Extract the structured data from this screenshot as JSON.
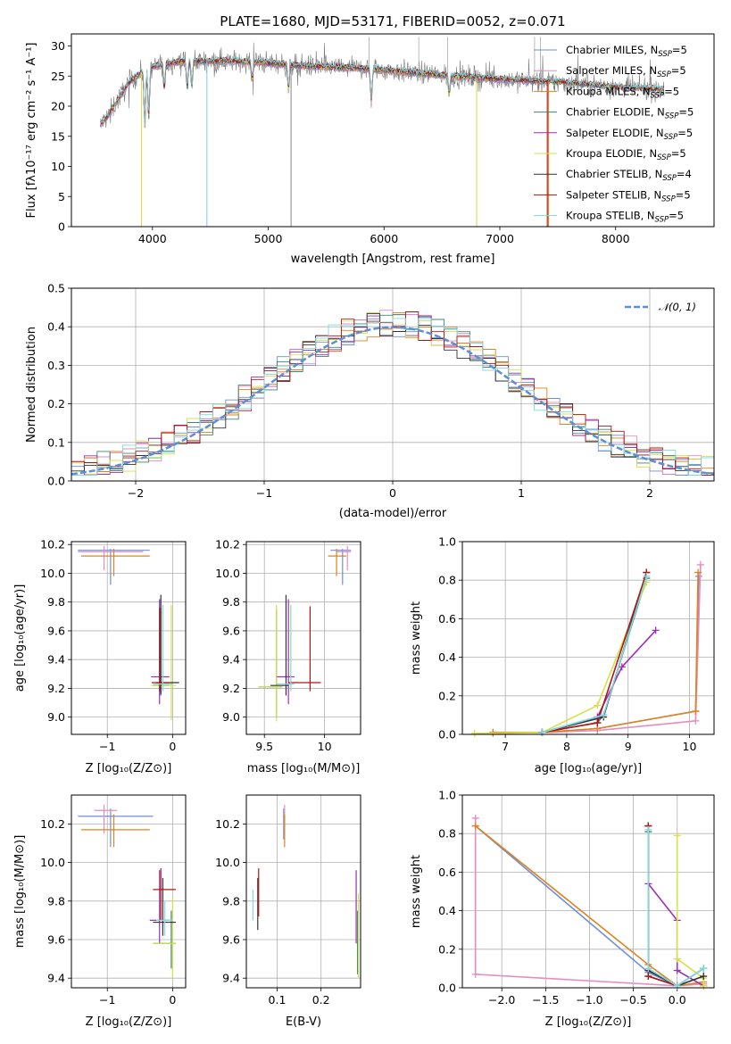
{
  "colors": {
    "chabrier_miles": "#6f8fd8",
    "salpeter_miles": "#e88bc0",
    "kroupa_miles": "#e0821e",
    "chabrier_elodie": "#3a8a7a",
    "salpeter_elodie": "#9b30b5",
    "kroupa_elodie": "#d6e04a",
    "chabrier_stelib": "#333333",
    "salpeter_stelib": "#b01515",
    "kroupa_stelib": "#7fd8e0",
    "data_gray": "#7a7a7a",
    "gauss": "#5b8fd8"
  },
  "chart_data": [
    {
      "type": "line",
      "title": "PLATE=1680, MJD=53171, FIBERID=0052, z=0.071",
      "xlabel": "wavelength [Angstrom, rest frame]",
      "ylabel": "Flux [fλ10⁻¹⁷ erg cm⁻² s⁻¹ A⁻¹]",
      "xlim": [
        3300,
        8850
      ],
      "ylim": [
        0,
        32
      ],
      "xticks": [
        4000,
        5000,
        6000,
        7000,
        8000
      ],
      "yticks": [
        0,
        5,
        10,
        15,
        20,
        25,
        30
      ],
      "grid": false,
      "legend": "top-right",
      "continuum_x": [
        3550,
        3600,
        3700,
        3800,
        3900,
        4000,
        4100,
        4200,
        4400,
        4600,
        4800,
        5000,
        5200,
        5500,
        5800,
        6000,
        6300,
        6600,
        6900,
        7200,
        7500,
        7800,
        8100,
        8400
      ],
      "continuum_y": [
        17,
        18,
        21,
        24,
        25.5,
        26.5,
        27,
        27.3,
        27.5,
        27.5,
        27.4,
        27.2,
        26.8,
        26.5,
        26.3,
        26,
        25.5,
        25,
        24.6,
        24.3,
        24,
        23.5,
        23,
        22.8
      ],
      "series": [
        {
          "name": "Chabrier MILES, N$_{SSP}$=5",
          "label_main": "Chabrier MILES, N",
          "label_sub": "SSP",
          "label_end": "=5",
          "color_key": "chabrier_miles"
        },
        {
          "name": "Salpeter MILES, N$_{SSP}$=5",
          "label_main": "Salpeter MILES, N",
          "label_sub": "SSP",
          "label_end": "=5",
          "color_key": "salpeter_miles"
        },
        {
          "name": "Kroupa MILES, N$_{SSP}$=5",
          "label_main": "Kroupa MILES, N",
          "label_sub": "SSP",
          "label_end": "=5",
          "color_key": "kroupa_miles"
        },
        {
          "name": "Chabrier ELODIE, N$_{SSP}$=5",
          "label_main": "Chabrier ELODIE, N",
          "label_sub": "SSP",
          "label_end": "=5",
          "color_key": "chabrier_elodie"
        },
        {
          "name": "Salpeter ELODIE, N$_{SSP}$=5",
          "label_main": "Salpeter ELODIE, N",
          "label_sub": "SSP",
          "label_end": "=5",
          "color_key": "salpeter_elodie"
        },
        {
          "name": "Kroupa ELODIE, N$_{SSP}$=5",
          "label_main": "Kroupa ELODIE, N",
          "label_sub": "SSP",
          "label_end": "=5",
          "color_key": "kroupa_elodie"
        },
        {
          "name": "Chabrier STELIB, N$_{SSP}$=4",
          "label_main": "Chabrier STELIB, N",
          "label_sub": "SSP",
          "label_end": "=4",
          "color_key": "chabrier_stelib"
        },
        {
          "name": "Salpeter STELIB, N$_{SSP}$=5",
          "label_main": "Salpeter STELIB, N",
          "label_sub": "SSP",
          "label_end": "=5",
          "color_key": "salpeter_stelib"
        },
        {
          "name": "Kroupa STELIB, N$_{SSP}$=5",
          "label_main": "Kroupa STELIB, N",
          "label_sub": "SSP",
          "label_end": "=5",
          "color_key": "kroupa_stelib"
        }
      ]
    },
    {
      "type": "line",
      "xlabel": "(data-model)/error",
      "ylabel": "Normed distribution",
      "xlim": [
        -2.5,
        2.5
      ],
      "ylim": [
        0,
        0.5
      ],
      "xticks": [
        -2,
        -1,
        0,
        1,
        2
      ],
      "yticks": [
        0.0,
        0.1,
        0.2,
        0.3,
        0.4,
        0.5
      ],
      "grid": true,
      "legend": "top-right",
      "gauss_label": "𝒩(0, 1)",
      "bin_width": 0.1,
      "bin_start": -2.5
    },
    {
      "type": "scatter",
      "xlabel": "Z [log₁₀(Z/Z⊙)]",
      "ylabel": "age  [log₁₀(age/yr)]",
      "xlim": [
        -1.55,
        0.2
      ],
      "ylim": [
        8.88,
        10.22
      ],
      "xticks": [
        -1,
        0
      ],
      "yticks": [
        9.0,
        9.2,
        9.4,
        9.6,
        9.8,
        10.0,
        10.2
      ],
      "grid": true,
      "points": [
        {
          "c": "chabrier_miles",
          "x": -0.95,
          "xe": [
            -1.45,
            -0.35
          ],
          "y": 10.16,
          "ye": [
            9.92,
            10.17
          ]
        },
        {
          "c": "salpeter_miles",
          "x": -1.05,
          "xe": [
            -1.45,
            -0.45
          ],
          "y": 10.15,
          "ye": [
            10.02,
            10.19
          ]
        },
        {
          "c": "kroupa_miles",
          "x": -0.9,
          "xe": [
            -1.4,
            -0.35
          ],
          "y": 10.12,
          "ye": [
            9.98,
            10.17
          ]
        },
        {
          "c": "chabrier_elodie",
          "x": -0.18,
          "xe": [
            -0.3,
            -0.05
          ],
          "y": 9.22,
          "ye": [
            9.15,
            9.76
          ]
        },
        {
          "c": "salpeter_elodie",
          "x": -0.2,
          "xe": [
            -0.33,
            -0.05
          ],
          "y": 9.28,
          "ye": [
            9.09,
            9.82
          ]
        },
        {
          "c": "kroupa_elodie",
          "x": -0.02,
          "xe": [
            -0.33,
            0.05
          ],
          "y": 9.22,
          "ye": [
            8.98,
            9.78
          ]
        },
        {
          "c": "chabrier_stelib",
          "x": -0.18,
          "xe": [
            -0.25,
            0.1
          ],
          "y": 9.24,
          "ye": [
            9.16,
            9.85
          ]
        },
        {
          "c": "salpeter_stelib",
          "x": -0.2,
          "xe": [
            -0.32,
            -0.05
          ],
          "y": 9.24,
          "ye": [
            9.18,
            9.76
          ]
        },
        {
          "c": "kroupa_stelib",
          "x": -0.15,
          "xe": [
            -0.3,
            0.0
          ],
          "y": 9.23,
          "ye": [
            9.18,
            9.78
          ]
        }
      ]
    },
    {
      "type": "scatter",
      "xlabel": "mass [log₁₀(M/M⊙)]",
      "ylabel": "",
      "xlim": [
        9.35,
        10.3
      ],
      "ylim": [
        8.88,
        10.22
      ],
      "xticks": [
        9.5,
        10.0
      ],
      "yticks": [
        9.0,
        9.2,
        9.4,
        9.6,
        9.8,
        10.0,
        10.2
      ],
      "grid": true,
      "points": [
        {
          "c": "chabrier_miles",
          "x": 10.15,
          "xe": [
            10.05,
            10.22
          ],
          "y": 10.16,
          "ye": [
            9.92,
            10.17
          ]
        },
        {
          "c": "salpeter_miles",
          "x": 10.19,
          "xe": [
            10.1,
            10.22
          ],
          "y": 10.15,
          "ye": [
            10.02,
            10.19
          ]
        },
        {
          "c": "kroupa_miles",
          "x": 10.1,
          "xe": [
            10.03,
            10.18
          ],
          "y": 10.12,
          "ye": [
            9.98,
            10.17
          ]
        },
        {
          "c": "chabrier_elodie",
          "x": 9.6,
          "xe": [
            9.45,
            9.65
          ],
          "y": 9.21,
          "ye": [
            9.0,
            9.75
          ]
        },
        {
          "c": "salpeter_elodie",
          "x": 9.7,
          "xe": [
            9.6,
            9.75
          ],
          "y": 9.28,
          "ye": [
            9.09,
            9.82
          ]
        },
        {
          "c": "kroupa_elodie",
          "x": 9.6,
          "xe": [
            9.45,
            9.65
          ],
          "y": 9.21,
          "ye": [
            8.97,
            9.78
          ]
        },
        {
          "c": "chabrier_stelib",
          "x": 9.68,
          "xe": [
            9.55,
            9.7
          ],
          "y": 9.22,
          "ye": [
            9.15,
            9.85
          ]
        },
        {
          "c": "salpeter_stelib",
          "x": 9.88,
          "xe": [
            9.7,
            9.97
          ],
          "y": 9.24,
          "ye": [
            9.18,
            9.77
          ]
        },
        {
          "c": "kroupa_stelib",
          "x": 9.72,
          "xe": [
            9.6,
            9.75
          ],
          "y": 9.23,
          "ye": [
            9.18,
            9.78
          ]
        }
      ]
    },
    {
      "type": "line",
      "xlabel": "age  [log₁₀(age/yr)]",
      "ylabel": "mass weight",
      "xlim": [
        6.3,
        10.4
      ],
      "ylim": [
        0,
        1
      ],
      "xticks": [
        7,
        8,
        9,
        10
      ],
      "yticks": [
        0.0,
        0.2,
        0.4,
        0.6,
        0.8,
        1.0
      ],
      "grid": true,
      "lines": [
        {
          "c": "chabrier_miles",
          "x": [
            6.8,
            7.6,
            8.5,
            10.1,
            10.15
          ],
          "y": [
            0.01,
            0.01,
            0.03,
            0.12,
            0.82
          ]
        },
        {
          "c": "salpeter_miles",
          "x": [
            6.8,
            7.6,
            8.5,
            10.1,
            10.18
          ],
          "y": [
            0.005,
            0.01,
            0.02,
            0.07,
            0.88
          ]
        },
        {
          "c": "kroupa_miles",
          "x": [
            6.8,
            7.6,
            8.5,
            10.1,
            10.14
          ],
          "y": [
            0.01,
            0.01,
            0.03,
            0.12,
            0.84
          ]
        },
        {
          "c": "chabrier_elodie",
          "x": [
            7.6,
            8.5,
            8.6,
            9.3
          ],
          "y": [
            0.01,
            0.06,
            0.1,
            0.81
          ]
        },
        {
          "c": "salpeter_elodie",
          "x": [
            7.6,
            8.5,
            8.9,
            9.45
          ],
          "y": [
            0.01,
            0.09,
            0.35,
            0.54
          ]
        },
        {
          "c": "kroupa_elodie",
          "x": [
            6.5,
            7.6,
            8.5,
            9.3
          ],
          "y": [
            0.005,
            0.01,
            0.15,
            0.79
          ]
        },
        {
          "c": "chabrier_stelib",
          "x": [
            7.6,
            8.6,
            9.3
          ],
          "y": [
            0.01,
            0.09,
            0.84
          ]
        },
        {
          "c": "salpeter_stelib",
          "x": [
            7.6,
            8.5,
            9.3
          ],
          "y": [
            0.01,
            0.06,
            0.84
          ]
        },
        {
          "c": "kroupa_stelib",
          "x": [
            7.6,
            8.6,
            9.3
          ],
          "y": [
            0.01,
            0.1,
            0.82
          ]
        }
      ]
    },
    {
      "type": "scatter",
      "xlabel": "Z [log₁₀(Z/Z⊙)]",
      "ylabel": "mass [log₁₀(M/M⊙)]",
      "xlim": [
        -1.55,
        0.2
      ],
      "ylim": [
        9.35,
        10.35
      ],
      "xticks": [
        -1,
        0
      ],
      "yticks": [
        9.4,
        9.6,
        9.8,
        10.0,
        10.2
      ],
      "grid": true,
      "points": [
        {
          "c": "chabrier_miles",
          "x": -0.95,
          "xe": [
            -1.45,
            -0.3
          ],
          "y": 10.24,
          "ye": [
            10.08,
            10.28
          ]
        },
        {
          "c": "salpeter_miles",
          "x": -1.05,
          "xe": [
            -1.2,
            -0.85
          ],
          "y": 10.27,
          "ye": [
            10.15,
            10.3
          ]
        },
        {
          "c": "kroupa_miles",
          "x": -0.9,
          "xe": [
            -1.4,
            -0.35
          ],
          "y": 10.17,
          "ye": [
            10.08,
            10.25
          ]
        },
        {
          "c": "chabrier_elodie",
          "x": -0.02,
          "xe": [
            -0.3,
            0.05
          ],
          "y": 9.58,
          "ye": [
            9.45,
            9.75
          ]
        },
        {
          "c": "salpeter_elodie",
          "x": -0.2,
          "xe": [
            -0.35,
            -0.05
          ],
          "y": 9.7,
          "ye": [
            9.58,
            9.96
          ]
        },
        {
          "c": "kroupa_elodie",
          "x": 0.0,
          "xe": [
            -0.3,
            0.05
          ],
          "y": 9.58,
          "ye": [
            9.4,
            9.82
          ]
        },
        {
          "c": "chabrier_stelib",
          "x": -0.15,
          "xe": [
            -0.3,
            0.05
          ],
          "y": 9.69,
          "ye": [
            9.62,
            9.92
          ]
        },
        {
          "c": "salpeter_stelib",
          "x": -0.18,
          "xe": [
            -0.3,
            0.05
          ],
          "y": 9.86,
          "ye": [
            9.7,
            9.97
          ]
        },
        {
          "c": "kroupa_stelib",
          "x": -0.12,
          "xe": [
            -0.25,
            0.0
          ],
          "y": 9.7,
          "ye": [
            9.62,
            9.8
          ]
        }
      ]
    },
    {
      "type": "scatter",
      "xlabel": "E(B-V)",
      "ylabel": "",
      "xlim": [
        0.03,
        0.29
      ],
      "ylim": [
        9.35,
        10.35
      ],
      "xticks": [
        0.1,
        0.2
      ],
      "yticks": [
        9.4,
        9.6,
        9.8,
        10.0,
        10.2
      ],
      "grid": true,
      "points": [
        {
          "c": "chabrier_miles",
          "y": 10.24,
          "x": 0.115,
          "ye": [
            10.12,
            10.28
          ]
        },
        {
          "c": "salpeter_miles",
          "y": 10.27,
          "x": 0.117,
          "ye": [
            10.17,
            10.3
          ]
        },
        {
          "c": "kroupa_miles",
          "y": 10.17,
          "x": 0.117,
          "ye": [
            10.08,
            10.25
          ]
        },
        {
          "c": "chabrier_elodie",
          "y": 9.58,
          "x": 0.283,
          "ye": [
            9.42,
            9.75
          ]
        },
        {
          "c": "salpeter_elodie",
          "y": 9.7,
          "x": 0.28,
          "ye": [
            9.58,
            9.96
          ]
        },
        {
          "c": "kroupa_elodie",
          "y": 9.58,
          "x": 0.285,
          "ye": [
            9.4,
            9.84
          ]
        },
        {
          "c": "chabrier_stelib",
          "y": 9.69,
          "x": 0.056,
          "ye": [
            9.65,
            9.92
          ]
        },
        {
          "c": "salpeter_stelib",
          "y": 9.86,
          "x": 0.058,
          "ye": [
            9.72,
            9.97
          ]
        },
        {
          "c": "kroupa_stelib",
          "y": 9.78,
          "x": 0.045,
          "ye": [
            9.7,
            9.86
          ]
        }
      ]
    },
    {
      "type": "line",
      "xlabel": "Z [log₁₀(Z/Z⊙)]",
      "ylabel": "mass weight",
      "xlim": [
        -2.45,
        0.42
      ],
      "ylim": [
        0,
        1
      ],
      "xticks": [
        -2.0,
        -1.5,
        -1.0,
        -0.5,
        0.0
      ],
      "yticks": [
        0.0,
        0.2,
        0.4,
        0.6,
        0.8,
        1.0
      ],
      "grid": true,
      "lines": [
        {
          "c": "chabrier_miles",
          "x": [
            -2.3,
            -0.33,
            0.0,
            0.3
          ],
          "y": [
            0.84,
            0.08,
            0.01,
            0.1
          ]
        },
        {
          "c": "salpeter_miles",
          "x": [
            -2.3,
            -2.3,
            0.0,
            0.3
          ],
          "y": [
            0.88,
            0.07,
            0.01,
            0.02
          ]
        },
        {
          "c": "kroupa_miles",
          "x": [
            -2.3,
            -0.33,
            0.0,
            0.3
          ],
          "y": [
            0.84,
            0.12,
            0.01,
            0.03
          ]
        },
        {
          "c": "chabrier_elodie",
          "x": [
            -0.33,
            -0.33,
            0.0,
            0.3
          ],
          "y": [
            0.81,
            0.06,
            0.01,
            0.1
          ]
        },
        {
          "c": "salpeter_elodie",
          "x": [
            -0.33,
            0.0,
            0.0,
            0.3
          ],
          "y": [
            0.54,
            0.35,
            0.09,
            0.01
          ]
        },
        {
          "c": "kroupa_elodie",
          "x": [
            0.0,
            0.0,
            0.3,
            0.3
          ],
          "y": [
            0.79,
            0.15,
            0.05,
            0.01
          ]
        },
        {
          "c": "chabrier_stelib",
          "x": [
            -0.33,
            -0.33,
            0.0,
            0.3
          ],
          "y": [
            0.84,
            0.09,
            0.01,
            0.06
          ]
        },
        {
          "c": "salpeter_stelib",
          "x": [
            -0.33,
            -0.33,
            0.0
          ],
          "y": [
            0.84,
            0.06,
            0.01
          ]
        },
        {
          "c": "kroupa_stelib",
          "x": [
            -0.33,
            -0.33,
            0.0,
            0.3
          ],
          "y": [
            0.82,
            0.1,
            0.01,
            0.1
          ]
        }
      ]
    }
  ]
}
